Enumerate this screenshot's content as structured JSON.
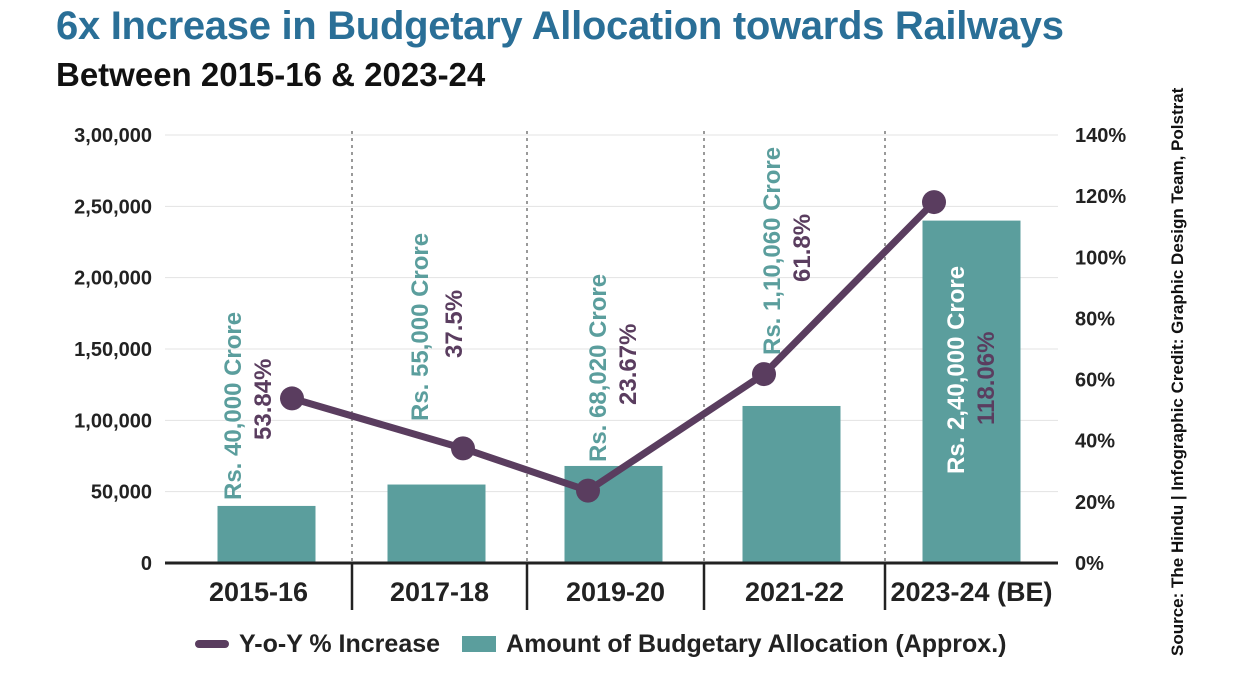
{
  "title": "6x Increase in Budgetary Allocation towards Railways",
  "subtitle": "Between 2015-16 & 2023-24",
  "source": "Source: The Hindu | Infographic Credit: Graphic Design Team, Polstrat",
  "legend": {
    "line_label": "Y-o-Y % Increase",
    "bar_label": "Amount of Budgetary Allocation (Approx.)"
  },
  "colors": {
    "bar": "#5b9e9d",
    "line": "#5a3d5f",
    "title": "#2a6f97"
  },
  "chart_data": {
    "type": "bar",
    "categories": [
      "2015-16",
      "2017-18",
      "2019-20",
      "2021-22",
      "2023-24 (BE)"
    ],
    "series": [
      {
        "name": "Amount of Budgetary Allocation (Approx.)",
        "type": "bar",
        "axis": "left",
        "values": [
          40000,
          55000,
          68020,
          110060,
          240000
        ],
        "labels": [
          "Rs. 40,000 Crore",
          "Rs. 55,000 Crore",
          "Rs. 68,020 Crore",
          "Rs. 1,10,060 Crore",
          "Rs. 2,40,000 Crore"
        ]
      },
      {
        "name": "Y-o-Y % Increase",
        "type": "line",
        "axis": "right",
        "values": [
          53.84,
          37.5,
          23.67,
          61.8,
          118.06
        ],
        "labels": [
          "53.84%",
          "37.5%",
          "23.67%",
          "61.8%",
          "118.06%"
        ]
      }
    ],
    "y_left": {
      "ylim": [
        0,
        300000
      ],
      "ticks": [
        0,
        50000,
        100000,
        150000,
        200000,
        250000,
        300000
      ],
      "tick_labels": [
        "0",
        "50,000",
        "1,00,000",
        "1,50,000",
        "2,00,000",
        "2,50,000",
        "3,00,000"
      ]
    },
    "y_right": {
      "ylim": [
        0,
        140
      ],
      "ticks": [
        0,
        20,
        40,
        60,
        80,
        100,
        120,
        140
      ],
      "tick_labels": [
        "0%",
        "20%",
        "40%",
        "60%",
        "80%",
        "100%",
        "120%",
        "140%"
      ]
    },
    "grid": true,
    "legend_position": "bottom"
  }
}
